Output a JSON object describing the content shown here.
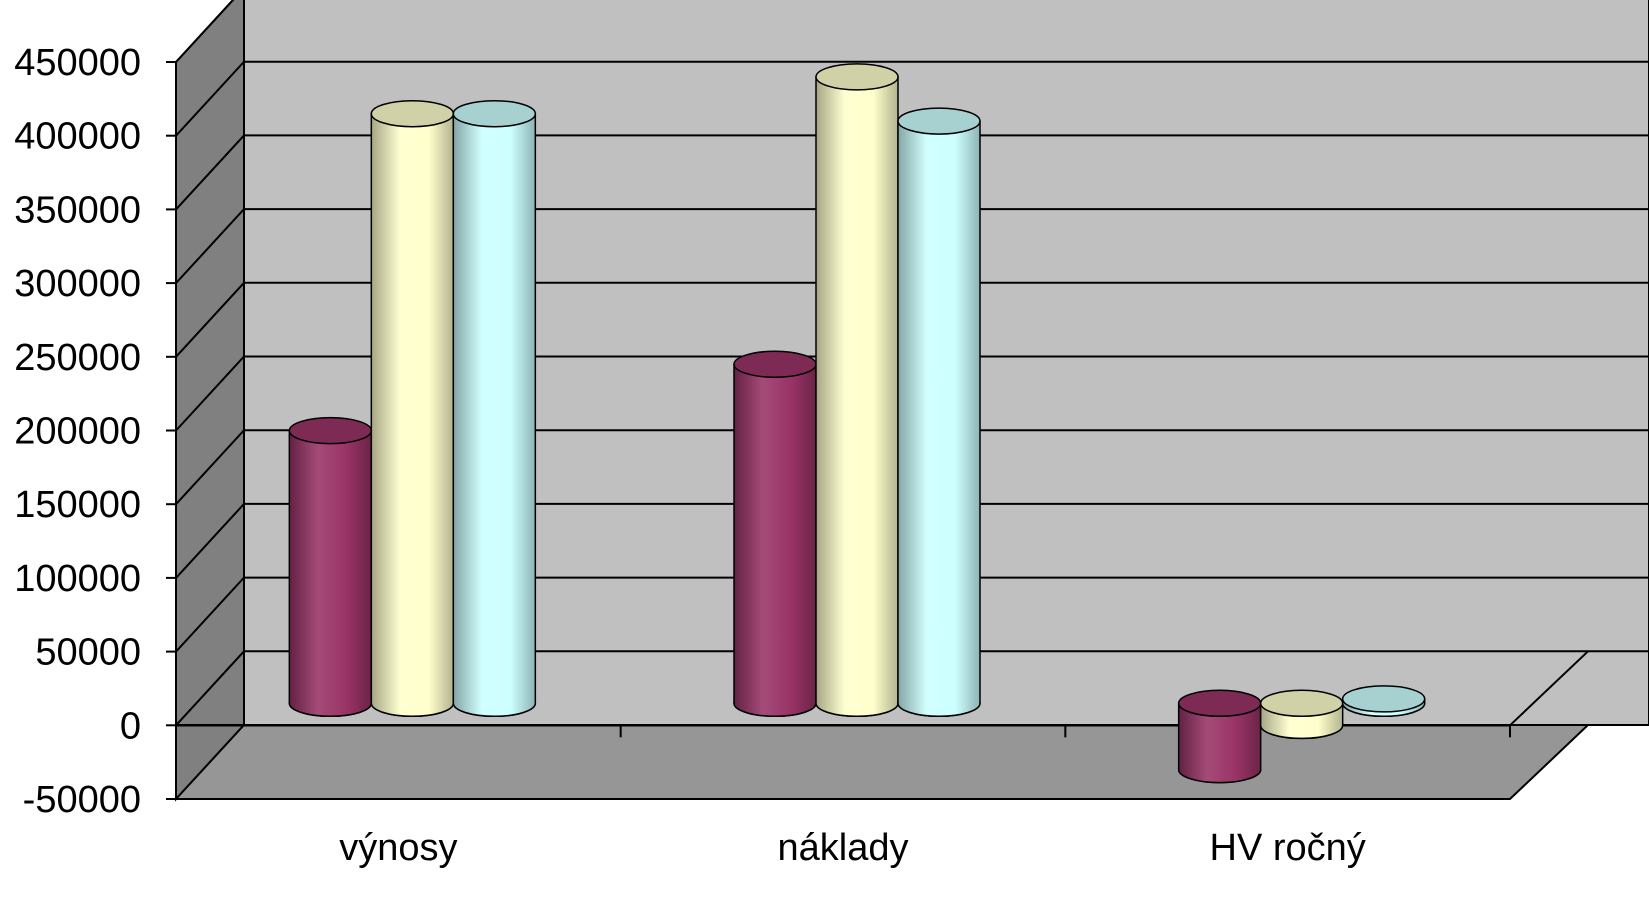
{
  "chart_data": {
    "type": "bar",
    "style": "3d-cylinder",
    "title": "",
    "xlabel": "",
    "ylabel": "",
    "categories": [
      "výnosy",
      "náklady",
      "HV ročný"
    ],
    "y_tick_labels": [
      "-50000",
      "0",
      "50000",
      "100000",
      "150000",
      "200000",
      "250000",
      "300000",
      "350000",
      "400000",
      "450000"
    ],
    "ylim": [
      -50000,
      450000
    ],
    "grid": true,
    "legend": "none",
    "series": [
      {
        "values": [
          185000,
          230000,
          -45000
        ],
        "color": "#993366"
      },
      {
        "values": [
          400000,
          425000,
          -15000
        ],
        "color": "#FFFFCC"
      },
      {
        "values": [
          400000,
          395000,
          3000
        ],
        "color": "#CCFFFF"
      }
    ],
    "colors": {
      "back_wall": "#C0C0C0",
      "side_wall": "#808080",
      "floor": "#969696",
      "gridline": "#000000"
    }
  }
}
